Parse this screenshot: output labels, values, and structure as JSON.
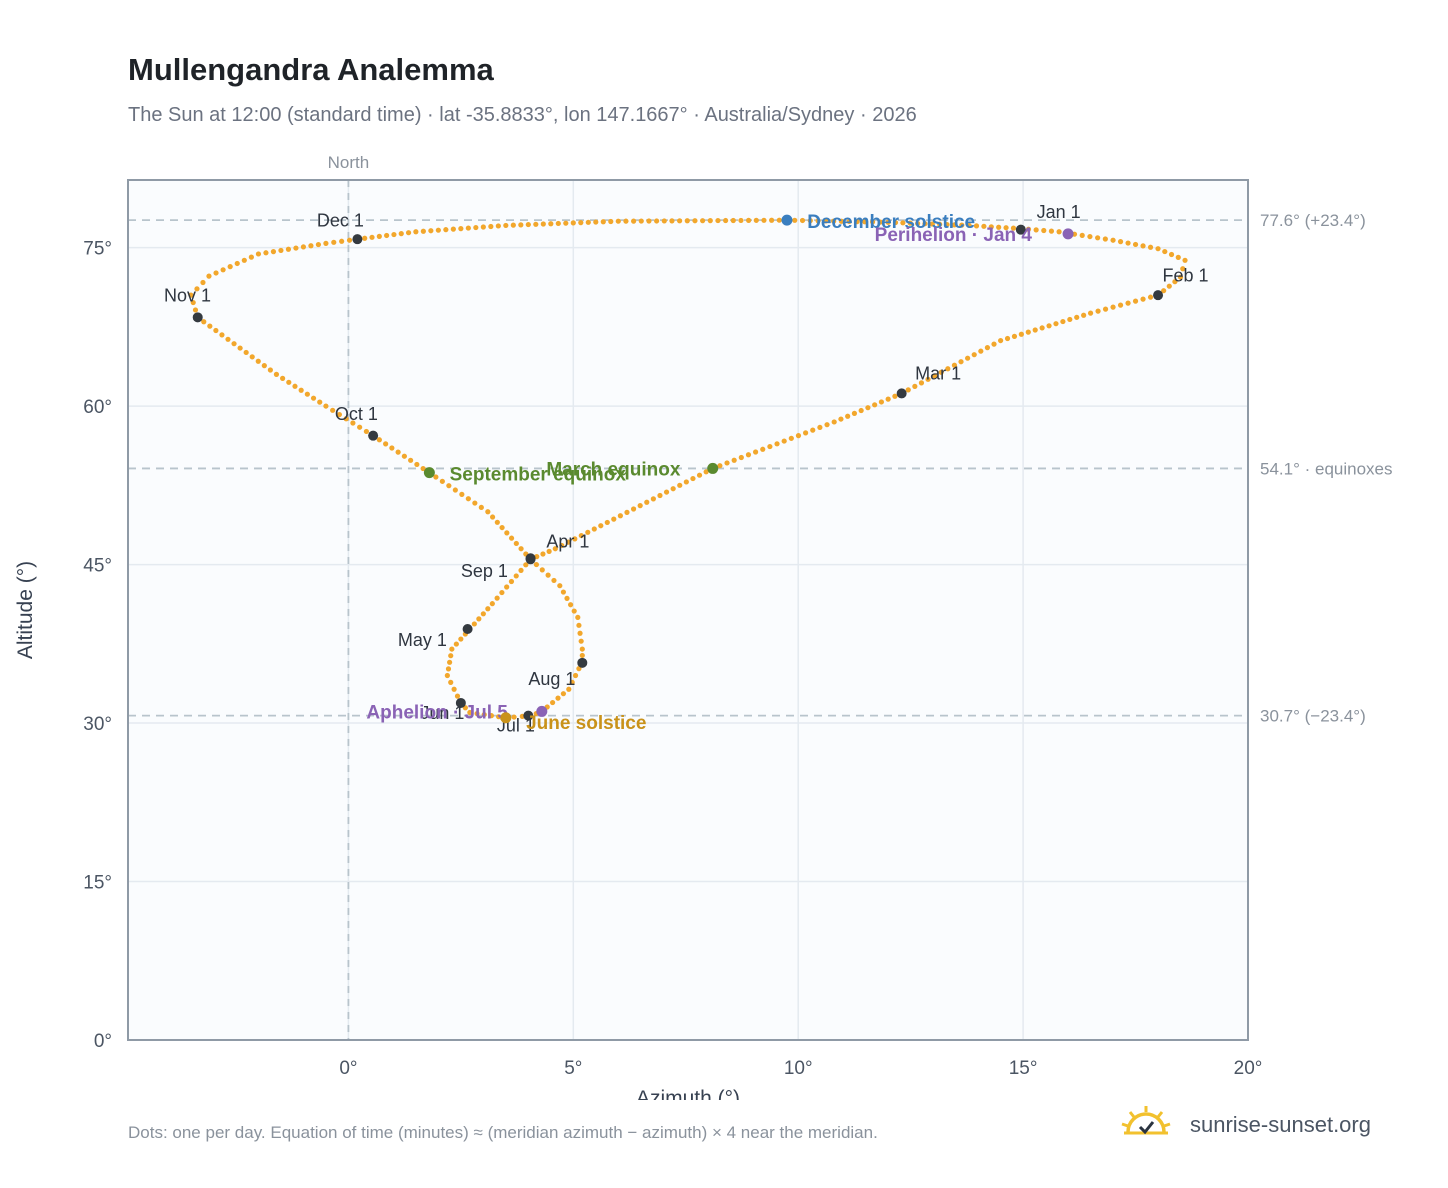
{
  "header": {
    "title": "Mullengandra Analemma",
    "subtitle": "The Sun at 12:00 (standard time) · lat -35.8833°, lon 147.1667° · Australia/Sydney · 2026"
  },
  "footer": {
    "note": "Dots: one per day. Equation of time (minutes) ≈ (meridian azimuth − azimuth) × 4 near the meridian.",
    "brand": "sunrise-sunset.org"
  },
  "colors": {
    "curve": "#f2a72c",
    "month_marker": "#343a40",
    "december_solstice": "#3a7ebf",
    "june_solstice": "#c9921a",
    "equinox": "#5a8a2f",
    "perihelion_aphelion": "#8a63b5",
    "plot_background": "#fafcfe",
    "grid": "#e4eaf0",
    "reference_line": "#b8c4cc"
  },
  "chart_data": {
    "type": "scatter",
    "xlabel": "Azimuth (°)",
    "ylabel": "Altitude (°)",
    "xlim": [
      -4.9,
      20
    ],
    "ylim": [
      0,
      81.4
    ],
    "x_ticks": [
      {
        "value": 0,
        "label": "0°"
      },
      {
        "value": 5,
        "label": "5°"
      },
      {
        "value": 10,
        "label": "10°"
      },
      {
        "value": 15,
        "label": "15°"
      },
      {
        "value": 20,
        "label": "20°"
      }
    ],
    "y_ticks": [
      {
        "value": 0,
        "label": "0°"
      },
      {
        "value": 15,
        "label": "15°"
      },
      {
        "value": 30,
        "label": "30°"
      },
      {
        "value": 45,
        "label": "45°"
      },
      {
        "value": 60,
        "label": "60°"
      },
      {
        "value": 75,
        "label": "75°"
      }
    ],
    "grid": true,
    "north_line": {
      "x": 0,
      "label": "North"
    },
    "reference_lines": [
      {
        "y": 77.6,
        "label": "77.6° (+23.4°)"
      },
      {
        "y": 54.1,
        "label": "54.1° · equinoxes"
      },
      {
        "y": 30.7,
        "label": "30.7° (−23.4°)"
      }
    ],
    "path_keypoints": [
      [
        14.95,
        76.8
      ],
      [
        15.8,
        76.5
      ],
      [
        17.0,
        75.7
      ],
      [
        18.0,
        74.9
      ],
      [
        18.6,
        73.8
      ],
      [
        18.5,
        72.2
      ],
      [
        18.0,
        70.5
      ],
      [
        16.5,
        68.8
      ],
      [
        14.5,
        66.2
      ],
      [
        12.3,
        61.2
      ],
      [
        10.8,
        58.5
      ],
      [
        8.1,
        54.1
      ],
      [
        5.9,
        49.3
      ],
      [
        4.6,
        46.5
      ],
      [
        4.05,
        45.5
      ],
      [
        4.7,
        43.0
      ],
      [
        5.1,
        40.0
      ],
      [
        5.2,
        37.0
      ],
      [
        5.2,
        35.8
      ],
      [
        4.9,
        33.2
      ],
      [
        4.3,
        31.1
      ],
      [
        4.05,
        30.7
      ],
      [
        3.5,
        30.5
      ],
      [
        2.7,
        31.0
      ],
      [
        2.5,
        31.9
      ],
      [
        2.2,
        34.5
      ],
      [
        2.3,
        37.0
      ],
      [
        2.7,
        38.9
      ],
      [
        3.2,
        41.3
      ],
      [
        4.05,
        45.5
      ],
      [
        3.1,
        50.0
      ],
      [
        1.8,
        53.7
      ],
      [
        0.55,
        57.2
      ],
      [
        -0.5,
        60.0
      ],
      [
        -1.6,
        63.0
      ],
      [
        -3.35,
        68.4
      ],
      [
        -3.5,
        70.5
      ],
      [
        -3.1,
        72.3
      ],
      [
        -2.0,
        74.4
      ],
      [
        -0.5,
        75.4
      ],
      [
        0.2,
        75.8
      ],
      [
        1.5,
        76.5
      ],
      [
        3.5,
        77.1
      ],
      [
        6.0,
        77.5
      ],
      [
        9.75,
        77.6
      ],
      [
        12.0,
        77.4
      ],
      [
        13.8,
        77.1
      ],
      [
        14.95,
        76.8
      ]
    ],
    "month_markers": [
      {
        "label": "Jan 1",
        "x": 14.95,
        "y": 76.7,
        "lx": 15.3,
        "ly": 77.8
      },
      {
        "label": "Feb 1",
        "x": 18.0,
        "y": 70.5,
        "lx": 18.1,
        "ly": 71.8
      },
      {
        "label": "Mar 1",
        "x": 12.3,
        "y": 61.2,
        "lx": 12.6,
        "ly": 62.5
      },
      {
        "label": "Apr 1",
        "x": 4.05,
        "y": 45.6,
        "lx": 4.4,
        "ly": 46.6
      },
      {
        "label": "May 1",
        "x": 2.65,
        "y": 38.9,
        "lx": 1.1,
        "ly": 37.3
      },
      {
        "label": "Jun 1",
        "x": 2.5,
        "y": 31.9,
        "lx": 1.6,
        "ly": 30.4
      },
      {
        "label": "Jul 1",
        "x": 4.0,
        "y": 30.7,
        "lx": 3.3,
        "ly": 29.2
      },
      {
        "label": "Aug 1",
        "x": 5.2,
        "y": 35.7,
        "lx": 4.0,
        "ly": 33.6
      },
      {
        "label": "Sep 1",
        "x": 4.05,
        "y": 45.5,
        "lx": 2.5,
        "ly": 43.8
      },
      {
        "label": "Oct 1",
        "x": 0.55,
        "y": 57.2,
        "lx": -0.3,
        "ly": 58.7
      },
      {
        "label": "Nov 1",
        "x": -3.35,
        "y": 68.4,
        "lx": -4.1,
        "ly": 69.9
      },
      {
        "label": "Dec 1",
        "x": 0.2,
        "y": 75.8,
        "lx": -0.7,
        "ly": 77.0
      }
    ],
    "special_points": [
      {
        "label": "December solstice",
        "x": 9.75,
        "y": 77.6,
        "lx": 10.2,
        "ly": 77.5,
        "color": "#3a7ebf"
      },
      {
        "label": "Perihelion · Jan 4",
        "x": 16.0,
        "y": 76.3,
        "lx": 11.7,
        "ly": 76.3,
        "color": "#8a63b5"
      },
      {
        "label": "March equinox",
        "x": 8.1,
        "y": 54.1,
        "lx": 4.4,
        "ly": 54.1,
        "color": "#5a8a2f"
      },
      {
        "label": "September equinox",
        "x": 1.8,
        "y": 53.7,
        "lx": 2.25,
        "ly": 53.6,
        "color": "#5a8a2f"
      },
      {
        "label": "Aphelion · Jul 5",
        "x": 4.3,
        "y": 31.1,
        "lx": 0.4,
        "ly": 31.1,
        "color": "#8a63b5"
      },
      {
        "label": "June solstice",
        "x": 3.5,
        "y": 30.5,
        "lx": 3.95,
        "ly": 30.1,
        "color": "#c9921a"
      }
    ]
  }
}
